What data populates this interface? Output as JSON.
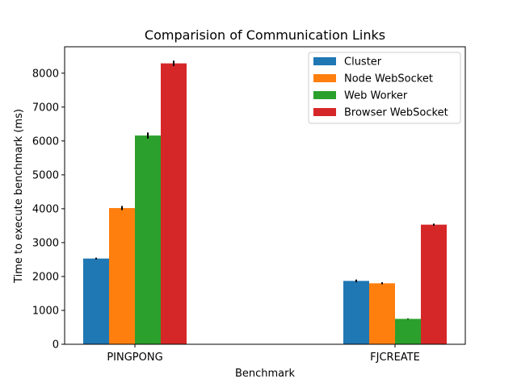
{
  "chart_data": {
    "type": "bar",
    "title": "Comparision of Communication Links",
    "xlabel": "Benchmark",
    "ylabel": "Time to execute benchmark (ms)",
    "categories": [
      "PINGPONG",
      "FJCREATE"
    ],
    "ylim": [
      0,
      8780
    ],
    "yticks": [
      0,
      1000,
      2000,
      3000,
      4000,
      5000,
      6000,
      7000,
      8000
    ],
    "legend_position": "top-right",
    "grid": false,
    "series": [
      {
        "name": "Cluster",
        "color": "#1f77b4",
        "values": [
          2530,
          1870
        ],
        "errors": [
          25,
          40
        ]
      },
      {
        "name": "Node WebSocket",
        "color": "#ff7f0e",
        "values": [
          4020,
          1800
        ],
        "errors": [
          60,
          30
        ]
      },
      {
        "name": "Web Worker",
        "color": "#2ca02c",
        "values": [
          6160,
          750
        ],
        "errors": [
          90,
          10
        ]
      },
      {
        "name": "Browser WebSocket",
        "color": "#d62728",
        "values": [
          8290,
          3530
        ],
        "errors": [
          80,
          30
        ]
      }
    ]
  }
}
